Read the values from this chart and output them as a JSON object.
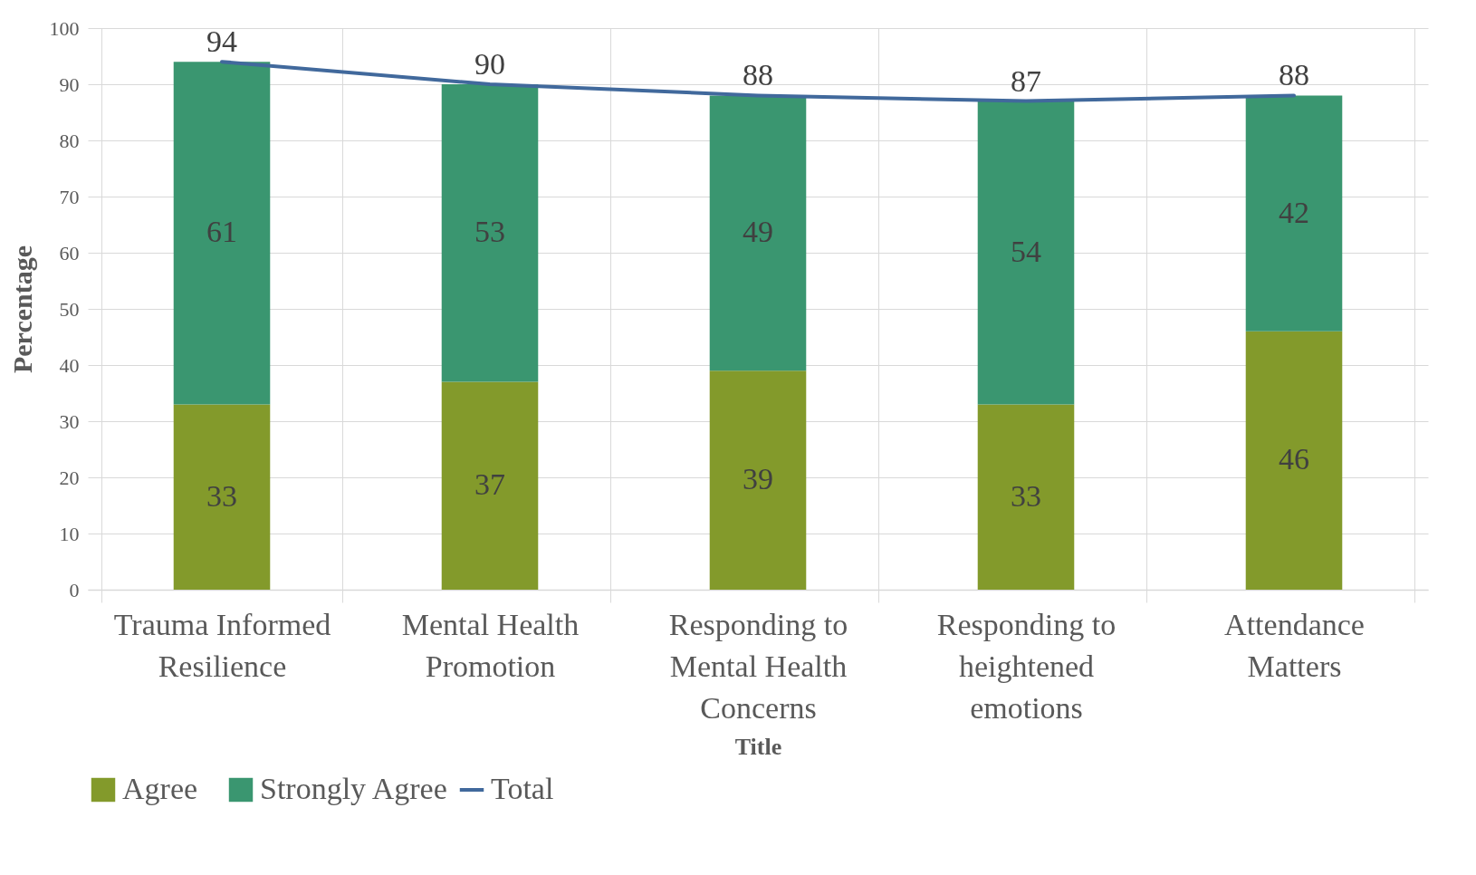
{
  "chart_data": {
    "type": "bar",
    "stacked": true,
    "xlabel": "Title",
    "ylabel": "Percentage",
    "categories": [
      "Trauma Informed Resilience",
      "Mental Health Promotion",
      "Responding to Mental Health Concerns",
      "Responding to heightened emotions",
      "Attendance Matters"
    ],
    "series": [
      {
        "name": "Agree",
        "color": "#839a2b",
        "values": [
          33,
          37,
          39,
          33,
          46
        ]
      },
      {
        "name": "Strongly Agree",
        "color": "#3a9670",
        "values": [
          61,
          53,
          49,
          54,
          42
        ]
      },
      {
        "name": "Total",
        "type": "line",
        "color": "#41699c",
        "values": [
          94,
          90,
          88,
          87,
          88
        ]
      }
    ],
    "ylim": [
      0,
      100
    ],
    "yticks": [
      0,
      10,
      20,
      30,
      40,
      50,
      60,
      70,
      80,
      90,
      100
    ],
    "grid": true,
    "legend": "bottom",
    "data_labels": true
  }
}
